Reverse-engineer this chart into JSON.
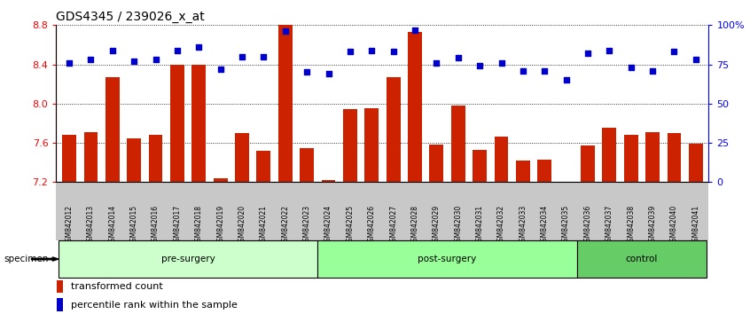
{
  "title": "GDS4345 / 239026_x_at",
  "samples": [
    "GSM842012",
    "GSM842013",
    "GSM842014",
    "GSM842015",
    "GSM842016",
    "GSM842017",
    "GSM842018",
    "GSM842019",
    "GSM842020",
    "GSM842021",
    "GSM842022",
    "GSM842023",
    "GSM842024",
    "GSM842025",
    "GSM842026",
    "GSM842027",
    "GSM842028",
    "GSM842029",
    "GSM842030",
    "GSM842031",
    "GSM842032",
    "GSM842033",
    "GSM842034",
    "GSM842035",
    "GSM842036",
    "GSM842037",
    "GSM842038",
    "GSM842039",
    "GSM842040",
    "GSM842041"
  ],
  "bar_values": [
    7.68,
    7.71,
    8.27,
    7.65,
    7.68,
    8.4,
    8.4,
    7.24,
    7.7,
    7.52,
    8.8,
    7.55,
    7.22,
    7.94,
    7.95,
    8.27,
    8.73,
    7.58,
    7.98,
    7.53,
    7.66,
    7.42,
    7.43,
    7.2,
    7.57,
    7.75,
    7.68,
    7.71,
    7.7,
    7.59
  ],
  "percentile_values": [
    76,
    78,
    84,
    77,
    78,
    84,
    86,
    72,
    80,
    80,
    96,
    70,
    69,
    83,
    84,
    83,
    97,
    76,
    79,
    74,
    76,
    71,
    71,
    65,
    82,
    84,
    73,
    71,
    83,
    78
  ],
  "groups": [
    {
      "label": "pre-surgery",
      "start": 0,
      "end": 11
    },
    {
      "label": "post-surgery",
      "start": 12,
      "end": 23
    },
    {
      "label": "control",
      "start": 24,
      "end": 29
    }
  ],
  "group_colors": [
    "#ccffcc",
    "#99ff99",
    "#66cc66"
  ],
  "ylim": [
    7.2,
    8.8
  ],
  "yticks": [
    7.2,
    7.6,
    8.0,
    8.4,
    8.8
  ],
  "right_yticks": [
    0,
    25,
    50,
    75,
    100
  ],
  "right_ylim": [
    0,
    100
  ],
  "bar_color": "#cc2200",
  "dot_color": "#0000cc",
  "title_fontsize": 10,
  "axis_fontsize": 8,
  "tick_label_fontsize": 5.5,
  "legend_fontsize": 8,
  "specimen_label": "specimen",
  "legend_items": [
    "transformed count",
    "percentile rank within the sample"
  ],
  "gray_bg": "#c8c8c8"
}
